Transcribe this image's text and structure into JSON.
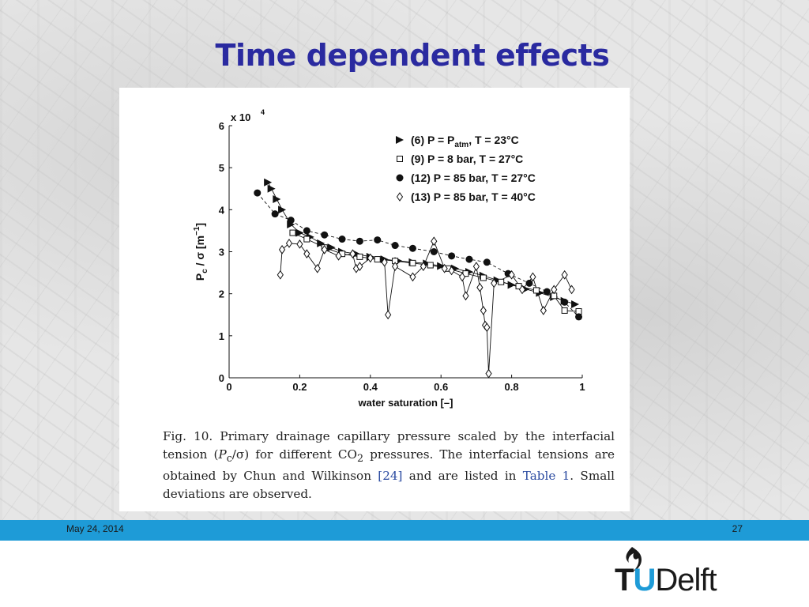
{
  "slide": {
    "title": "Time dependent effects",
    "footer_date": "May 24, 2014",
    "page_number": "27",
    "logo": {
      "part1": "T",
      "part2": "U",
      "part3": "Delft"
    }
  },
  "caption": {
    "part1": "Fig. 10. Primary drainage capillary pressure scaled by the interfacial tension (",
    "part2": "P",
    "part3": "c",
    "part4": "/σ) for different CO",
    "part5": "2",
    "part6": " pressures. The interfacial tensions are obtained by Chun and Wilkinson ",
    "ref1": "[24]",
    "part7": " and are listed in ",
    "ref2": "Table 1",
    "part8": ". Small deviations are observed."
  },
  "colors": {
    "title": "#2a2aa0",
    "footer_bar": "#1e9bd7",
    "link": "#2a4aa0"
  },
  "chart_data": {
    "type": "scatter",
    "xlabel": "water saturation [–]",
    "ylabel": "P_c / σ [m^-1]",
    "ylabel_parts": {
      "p": "P",
      "sub": "c",
      "mid": " / σ [m",
      "sup": "−1",
      "end": "]"
    },
    "y_multiplier": "x 10",
    "y_multiplier_exp": "4",
    "xlim": [
      0,
      1
    ],
    "ylim": [
      0,
      60000
    ],
    "x_ticks": [
      "0",
      "0.2",
      "0.4",
      "0.6",
      "0.8",
      "1"
    ],
    "y_ticks": [
      "0",
      "1",
      "2",
      "3",
      "4",
      "5",
      "6"
    ],
    "x_tick_values": [
      0,
      0.2,
      0.4,
      0.6,
      0.8,
      1
    ],
    "y_tick_values": [
      0,
      10000,
      20000,
      30000,
      40000,
      50000,
      60000
    ],
    "legend_position": "top-right",
    "series": [
      {
        "name": "(6) P = P_atm, T = 23°C",
        "label_parts": {
          "a": "(6) P = P",
          "sub": "atm",
          "b": ", T = 23°C"
        },
        "marker": "filled-triangle-right",
        "line": "solid",
        "points": [
          [
            0.11,
            46500
          ],
          [
            0.12,
            45000
          ],
          [
            0.135,
            42500
          ],
          [
            0.15,
            40000
          ],
          [
            0.175,
            36500
          ],
          [
            0.2,
            34500
          ],
          [
            0.23,
            33500
          ],
          [
            0.26,
            32000
          ],
          [
            0.29,
            31000
          ],
          [
            0.32,
            30000
          ],
          [
            0.36,
            29500
          ],
          [
            0.4,
            28800
          ],
          [
            0.44,
            28200
          ],
          [
            0.48,
            27800
          ],
          [
            0.52,
            27500
          ],
          [
            0.56,
            27200
          ],
          [
            0.6,
            26600
          ],
          [
            0.64,
            26000
          ],
          [
            0.68,
            25200
          ],
          [
            0.72,
            24300
          ],
          [
            0.76,
            23200
          ],
          [
            0.8,
            22100
          ],
          [
            0.84,
            21100
          ],
          [
            0.88,
            20200
          ],
          [
            0.92,
            19200
          ],
          [
            0.95,
            18300
          ],
          [
            0.98,
            17500
          ]
        ]
      },
      {
        "name": "(9) P = 8 bar, T = 27°C",
        "label_parts": {
          "a": "(9) P = 8 bar, T = 27°C",
          "sub": "",
          "b": ""
        },
        "marker": "open-square",
        "line": "solid",
        "points": [
          [
            0.18,
            34500
          ],
          [
            0.22,
            33000
          ],
          [
            0.27,
            31000
          ],
          [
            0.32,
            29500
          ],
          [
            0.37,
            28800
          ],
          [
            0.42,
            28200
          ],
          [
            0.47,
            27800
          ],
          [
            0.52,
            27300
          ],
          [
            0.57,
            26800
          ],
          [
            0.62,
            26000
          ],
          [
            0.67,
            24800
          ],
          [
            0.72,
            23800
          ],
          [
            0.77,
            22800
          ],
          [
            0.82,
            21800
          ],
          [
            0.87,
            20800
          ],
          [
            0.92,
            19500
          ],
          [
            0.95,
            16000
          ],
          [
            0.99,
            15800
          ]
        ]
      },
      {
        "name": "(12) P = 85 bar, T = 27°C",
        "label_parts": {
          "a": "(12) P = 85 bar, T = 27°C",
          "sub": "",
          "b": ""
        },
        "marker": "filled-circle",
        "line": "dashed",
        "points": [
          [
            0.08,
            44000
          ],
          [
            0.13,
            39000
          ],
          [
            0.175,
            37500
          ],
          [
            0.22,
            35000
          ],
          [
            0.27,
            34000
          ],
          [
            0.32,
            33000
          ],
          [
            0.37,
            32500
          ],
          [
            0.42,
            32800
          ],
          [
            0.47,
            31500
          ],
          [
            0.52,
            30800
          ],
          [
            0.58,
            30000
          ],
          [
            0.63,
            29000
          ],
          [
            0.68,
            28200
          ],
          [
            0.73,
            27500
          ],
          [
            0.79,
            24800
          ],
          [
            0.85,
            22500
          ],
          [
            0.9,
            20500
          ],
          [
            0.95,
            18000
          ],
          [
            0.99,
            14500
          ]
        ]
      },
      {
        "name": "(13) P = 85 bar, T = 40°C",
        "label_parts": {
          "a": "(13) P = 85 bar, T = 40°C",
          "sub": "",
          "b": ""
        },
        "marker": "open-diamond",
        "line": "solid",
        "points": [
          [
            0.145,
            24500
          ],
          [
            0.15,
            30500
          ],
          [
            0.17,
            32000
          ],
          [
            0.2,
            31800
          ],
          [
            0.22,
            29500
          ],
          [
            0.25,
            26000
          ],
          [
            0.27,
            30500
          ],
          [
            0.31,
            29000
          ],
          [
            0.35,
            29500
          ],
          [
            0.36,
            26000
          ],
          [
            0.37,
            26500
          ],
          [
            0.4,
            28500
          ],
          [
            0.44,
            27500
          ],
          [
            0.45,
            15000
          ],
          [
            0.47,
            26500
          ],
          [
            0.52,
            24000
          ],
          [
            0.55,
            26500
          ],
          [
            0.58,
            32500
          ],
          [
            0.61,
            26000
          ],
          [
            0.63,
            25500
          ],
          [
            0.66,
            24000
          ],
          [
            0.67,
            19500
          ],
          [
            0.7,
            26500
          ],
          [
            0.71,
            21500
          ],
          [
            0.72,
            16000
          ],
          [
            0.725,
            12500
          ],
          [
            0.73,
            12000
          ],
          [
            0.735,
            1000
          ],
          [
            0.75,
            22500
          ],
          [
            0.8,
            24500
          ],
          [
            0.83,
            21000
          ],
          [
            0.86,
            24000
          ],
          [
            0.89,
            16000
          ],
          [
            0.92,
            21000
          ],
          [
            0.95,
            24500
          ],
          [
            0.97,
            21000
          ]
        ]
      }
    ]
  }
}
